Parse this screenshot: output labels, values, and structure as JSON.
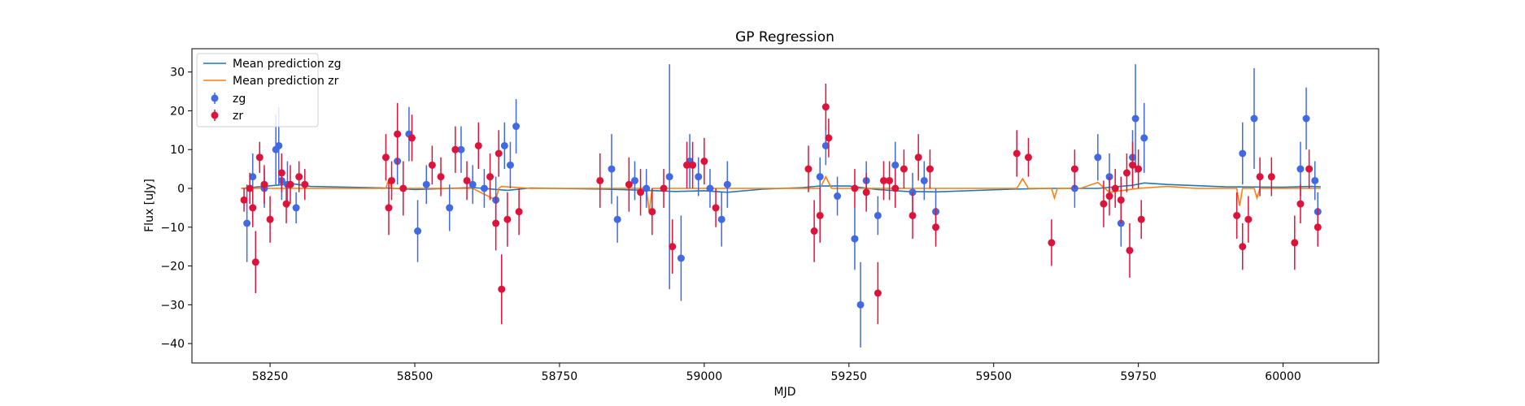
{
  "chart_data": {
    "type": "scatter",
    "title": "GP Regression",
    "xlabel": "MJD",
    "ylabel": "Flux [uJy]",
    "xlim": [
      58115,
      60165
    ],
    "ylim": [
      -45,
      36
    ],
    "x_ticks": [
      58250,
      58500,
      58750,
      59000,
      59250,
      59500,
      59750,
      60000
    ],
    "y_ticks": [
      -40,
      -30,
      -20,
      -10,
      0,
      10,
      20,
      30
    ],
    "grid": false,
    "legend": {
      "placement": "upper-left",
      "entries": [
        "Mean prediction zg",
        "Mean prediction zr",
        "zg",
        "zr"
      ]
    },
    "colors": {
      "zg_points": "#4169e1",
      "zr_points": "#dc143c",
      "zg_line": "#1f77b4",
      "zr_line": "#ff7f0e"
    },
    "series": [
      {
        "name": "Mean prediction zg",
        "kind": "line",
        "x": [
          58200,
          58260,
          58290,
          58320,
          58450,
          58500,
          58600,
          58660,
          58700,
          58830,
          58900,
          58950,
          59000,
          59040,
          59100,
          59170,
          59200,
          59250,
          59300,
          59350,
          59400,
          59530,
          59600,
          59680,
          59740,
          59760,
          59800,
          59900,
          60000,
          60050,
          60065
        ],
        "y": [
          0,
          0.8,
          1.2,
          0.5,
          0.1,
          -0.3,
          0.2,
          -0.5,
          0.1,
          -0.2,
          -0.5,
          -0.8,
          -0.6,
          -1.0,
          -0.2,
          0.2,
          0.6,
          0.6,
          -0.3,
          -0.8,
          -0.9,
          -0.2,
          0,
          0,
          0.8,
          1.4,
          1.0,
          0.4,
          0.3,
          0.5,
          0.4
        ]
      },
      {
        "name": "Mean prediction zr",
        "kind": "line",
        "x": [
          58200,
          58300,
          58450,
          58455,
          58460,
          58480,
          58600,
          58640,
          58645,
          58650,
          58700,
          58800,
          58900,
          58905,
          58910,
          59000,
          59100,
          59200,
          59210,
          59220,
          59300,
          59400,
          59540,
          59550,
          59560,
          59600,
          59605,
          59610,
          59650,
          59680,
          59700,
          59750,
          59800,
          59850,
          59920,
          59925,
          59930,
          59950,
          59955,
          59960,
          60000,
          60065
        ],
        "y": [
          0,
          0,
          0,
          2.3,
          0,
          0,
          0,
          -3.0,
          0,
          0.5,
          0,
          0,
          0,
          -6.0,
          0,
          0,
          0,
          0,
          3.0,
          0,
          0,
          0,
          0,
          2.5,
          0,
          0,
          -2.5,
          0,
          0,
          1.5,
          -1.0,
          0,
          0.5,
          0,
          0,
          -4.5,
          0,
          0,
          -2.5,
          0,
          0,
          0
        ]
      },
      {
        "name": "zg",
        "kind": "errorbar",
        "x": [
          58210,
          58220,
          58240,
          58260,
          58265,
          58270,
          58280,
          58295,
          58470,
          58490,
          58505,
          58520,
          58560,
          58580,
          58600,
          58620,
          58640,
          58655,
          58665,
          58675,
          58840,
          58850,
          58880,
          58900,
          58940,
          58960,
          58975,
          58990,
          59010,
          59030,
          59040,
          59200,
          59210,
          59230,
          59260,
          59270,
          59280,
          59300,
          59330,
          59360,
          59380,
          59400,
          59640,
          59680,
          59700,
          59720,
          59740,
          59745,
          59760,
          59930,
          59950,
          60030,
          60040,
          60055,
          60060
        ],
        "y": [
          -9,
          3,
          0,
          10,
          11,
          2,
          1,
          -5,
          7,
          14,
          -11,
          1,
          -5,
          10,
          1,
          0,
          -3,
          11,
          6,
          16,
          5,
          -8,
          2,
          0,
          3,
          -18,
          7,
          3,
          0,
          -8,
          1,
          3,
          11,
          -2,
          -13,
          -30,
          2,
          -7,
          6,
          -1,
          2,
          -6,
          0,
          8,
          3,
          -9,
          8,
          18,
          13,
          9,
          18,
          5,
          18,
          2,
          -6
        ],
        "yerr": [
          10,
          6,
          5,
          9,
          10,
          5,
          6,
          4,
          6,
          7,
          8,
          5,
          6,
          6,
          5,
          5,
          6,
          6,
          6,
          7,
          9,
          6,
          5,
          5,
          29,
          11,
          7,
          5,
          5,
          7,
          6,
          5,
          5,
          5,
          8,
          11,
          5,
          5,
          6,
          5,
          5,
          6,
          5,
          6,
          6,
          6,
          7,
          14,
          9,
          8,
          13,
          7,
          8,
          5,
          5
        ],
        "marker": "circle"
      },
      {
        "name": "zr",
        "kind": "errorbar",
        "x": [
          58205,
          58215,
          58220,
          58225,
          58232,
          58240,
          58250,
          58270,
          58278,
          58285,
          58300,
          58310,
          58450,
          58455,
          58460,
          58470,
          58480,
          58495,
          58530,
          58545,
          58570,
          58590,
          58610,
          58630,
          58640,
          58645,
          58650,
          58660,
          58680,
          58820,
          58870,
          58890,
          58910,
          58930,
          58945,
          58970,
          58980,
          59000,
          59020,
          59180,
          59190,
          59200,
          59210,
          59215,
          59260,
          59280,
          59300,
          59310,
          59320,
          59330,
          59345,
          59360,
          59370,
          59390,
          59400,
          59540,
          59560,
          59600,
          59640,
          59690,
          59700,
          59710,
          59720,
          59730,
          59735,
          59740,
          59750,
          59755,
          59920,
          59930,
          59940,
          59960,
          59980,
          60020,
          60030,
          60045,
          60060
        ],
        "y": [
          -3,
          0,
          -5,
          -19,
          8,
          1,
          -8,
          4,
          -4,
          1,
          3,
          1,
          8,
          -5,
          2,
          14,
          0,
          13,
          6,
          3,
          10,
          2,
          11,
          3,
          -9,
          9,
          -26,
          -8,
          -6,
          2,
          1,
          -1,
          -6,
          0,
          -15,
          6,
          6,
          7,
          -5,
          5,
          -11,
          -7,
          21,
          13,
          0,
          -1,
          -27,
          2,
          2,
          0,
          5,
          -7,
          8,
          5,
          -10,
          9,
          8,
          -14,
          5,
          -4,
          -2,
          0,
          -3,
          4,
          -16,
          6,
          5,
          -8,
          -7,
          -15,
          -8,
          3,
          3,
          -14,
          -4,
          5,
          -10
        ],
        "yerr": [
          3,
          4,
          5,
          8,
          4,
          5,
          6,
          5,
          5,
          5,
          4,
          4,
          6,
          7,
          5,
          8,
          7,
          6,
          5,
          5,
          6,
          5,
          6,
          6,
          7,
          6,
          9,
          7,
          6,
          7,
          7,
          6,
          6,
          5,
          7,
          6,
          6,
          6,
          5,
          6,
          8,
          7,
          6,
          5,
          5,
          5,
          8,
          5,
          5,
          5,
          5,
          6,
          6,
          5,
          5,
          6,
          5,
          6,
          5,
          6,
          5,
          5,
          6,
          5,
          7,
          6,
          5,
          5,
          6,
          6,
          6,
          5,
          5,
          7,
          5,
          5,
          5
        ],
        "marker": "circle"
      }
    ]
  }
}
